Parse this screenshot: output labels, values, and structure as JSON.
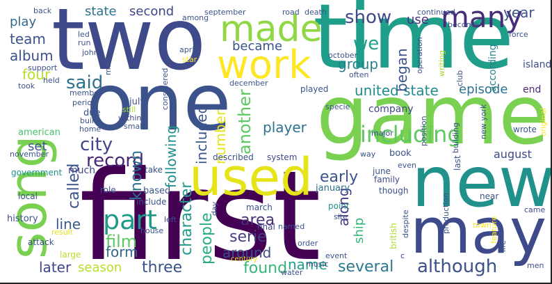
{
  "colors": {
    "background": "#ffffff",
    "dark_purple": "#440154",
    "indigo": "#3b528b",
    "blue": "#2c728e",
    "teal": "#21918c",
    "green": "#28ae80",
    "light_green": "#5ec962",
    "lime": "#addc30",
    "yellow": "#fde725"
  },
  "words": [
    {
      "text": "two",
      "color": "#3e4a89"
    },
    {
      "text": "time",
      "color": "#1f9e89"
    },
    {
      "text": "one",
      "color": "#3b528b"
    },
    {
      "text": "game",
      "color": "#7ad151"
    },
    {
      "text": "first",
      "color": "#440154"
    },
    {
      "text": "new",
      "color": "#21918c"
    },
    {
      "text": "may",
      "color": "#3e4a89"
    },
    {
      "text": "song",
      "color": "#7ad151"
    },
    {
      "text": "used",
      "color": "#e5e419"
    },
    {
      "text": "work",
      "color": "#fde725"
    },
    {
      "text": "made",
      "color": "#8fd744"
    },
    {
      "text": "many",
      "color": "#472c7a"
    },
    {
      "text": "part",
      "color": "#1f9a8a"
    },
    {
      "text": "including",
      "color": "#5ec962"
    },
    {
      "text": "although",
      "color": "#3b528b"
    },
    {
      "text": "united state",
      "color": "#238a8d"
    },
    {
      "text": "said",
      "color": "#2d708e"
    },
    {
      "text": "city",
      "color": "#3f4788"
    },
    {
      "text": "record",
      "color": "#482576"
    },
    {
      "text": "film",
      "color": "#5ec962"
    },
    {
      "text": "called",
      "color": "#3b528b"
    },
    {
      "text": "known",
      "color": "#2d708e"
    },
    {
      "text": "character",
      "color": "#1f9a8a"
    },
    {
      "text": "people",
      "color": "#29af7f"
    },
    {
      "text": "following",
      "color": "#21918c"
    },
    {
      "text": "included",
      "color": "#3a548c"
    },
    {
      "text": "number",
      "color": "#e5e419"
    },
    {
      "text": "another",
      "color": "#5ec962"
    },
    {
      "text": "player",
      "color": "#2c728e"
    },
    {
      "text": "early",
      "color": "#3b528b"
    },
    {
      "text": "area",
      "color": "#472d7b"
    },
    {
      "text": "along",
      "color": "#443983"
    },
    {
      "text": "serie",
      "color": "#433d84"
    },
    {
      "text": "around",
      "color": "#3d4d8a"
    },
    {
      "text": "ship",
      "color": "#35b779"
    },
    {
      "text": "found",
      "color": "#35b779"
    },
    {
      "text": "name",
      "color": "#1fa188"
    },
    {
      "text": "several",
      "color": "#2a788e"
    },
    {
      "text": "three",
      "color": "#3b528b"
    },
    {
      "text": "season",
      "color": "#b8de29"
    },
    {
      "text": "later",
      "color": "#3f4788"
    },
    {
      "text": "form",
      "color": "#31688e"
    },
    {
      "text": "line",
      "color": "#38588c"
    },
    {
      "text": "episode",
      "color": "#2c728e"
    },
    {
      "text": "became",
      "color": "#3b528b"
    },
    {
      "text": "group",
      "color": "#26828e"
    },
    {
      "text": "well",
      "color": "#1f9e89"
    },
    {
      "text": "began",
      "color": "#3b528b"
    },
    {
      "text": "show",
      "color": "#3e4a89"
    },
    {
      "text": "use",
      "color": "#472f7d"
    },
    {
      "text": "year",
      "color": "#3b528b"
    },
    {
      "text": "state",
      "color": "#2c728e"
    },
    {
      "text": "second",
      "color": "#3f4788"
    },
    {
      "text": "team",
      "color": "#3b528b"
    },
    {
      "text": "play",
      "color": "#31688e"
    },
    {
      "text": "album",
      "color": "#3b528b"
    },
    {
      "text": "four",
      "color": "#b8de29"
    },
    {
      "text": "august",
      "color": "#3e4a89"
    },
    {
      "text": "end",
      "color": "#482878"
    },
    {
      "text": "company",
      "color": "#3f4788"
    },
    {
      "text": "according",
      "color": "#26828e"
    },
    {
      "text": "island",
      "color": "#3d4e8a"
    },
    {
      "text": "history",
      "color": "#3b528b"
    },
    {
      "text": "american",
      "color": "#4ac16d"
    },
    {
      "text": "set",
      "color": "#3b528b"
    },
    {
      "text": "government",
      "color": "#21918c"
    },
    {
      "text": "much",
      "color": "#3f4788"
    },
    {
      "text": "local",
      "color": "#3b528b"
    },
    {
      "text": "large",
      "color": "#b8de29"
    },
    {
      "text": "attack",
      "color": "#3b528b"
    },
    {
      "text": "result",
      "color": "#e5e419"
    },
    {
      "text": "described",
      "color": "#3b528b"
    },
    {
      "text": "system",
      "color": "#3e4a89"
    },
    {
      "text": "june",
      "color": "#3b528b"
    },
    {
      "text": "january",
      "color": "#2c728e"
    },
    {
      "text": "though",
      "color": "#3b528b"
    },
    {
      "text": "family",
      "color": "#3e4a89"
    },
    {
      "text": "last",
      "color": "#3b528b"
    },
    {
      "text": "near",
      "color": "#3b528b"
    },
    {
      "text": "came",
      "color": "#3e4a89"
    },
    {
      "text": "life",
      "color": "#3b528b"
    },
    {
      "text": "men",
      "color": "#3e4a89"
    },
    {
      "text": "feature",
      "color": "#fde725"
    },
    {
      "text": "production",
      "color": "#3b528b"
    },
    {
      "text": "town",
      "color": "#fde725"
    },
    {
      "text": "despite",
      "color": "#3b528b"
    },
    {
      "text": "c",
      "color": "#3b528b"
    },
    {
      "text": "british",
      "color": "#addc30"
    },
    {
      "text": "point",
      "color": "#21918c"
    },
    {
      "text": "site",
      "color": "#3b528b"
    },
    {
      "text": "march",
      "color": "#3b528b"
    },
    {
      "text": "final",
      "color": "#3e4a89"
    },
    {
      "text": "named",
      "color": "#3b528b"
    },
    {
      "text": "order",
      "color": "#3b528b"
    },
    {
      "text": "event",
      "color": "#3b528b"
    },
    {
      "text": "music",
      "color": "#3e4a89"
    },
    {
      "text": "century",
      "color": "#e5e419"
    },
    {
      "text": "water",
      "color": "#3b528b"
    },
    {
      "text": "role",
      "color": "#3b528b"
    },
    {
      "text": "left",
      "color": "#3e4a89"
    },
    {
      "text": "day",
      "color": "#3b528b"
    },
    {
      "text": "house",
      "color": "#3b528b"
    },
    {
      "text": "based",
      "color": "#3b528b"
    },
    {
      "text": "include",
      "color": "#3b528b"
    },
    {
      "text": "take",
      "color": "#3b528b"
    },
    {
      "text": "small",
      "color": "#3b528b"
    },
    {
      "text": "home",
      "color": "#3b528b"
    },
    {
      "text": "built",
      "color": "#3b528b"
    },
    {
      "text": "within",
      "color": "#3e4a89"
    },
    {
      "text": "still",
      "color": "#addc30"
    },
    {
      "text": "period",
      "color": "#3b528b"
    },
    {
      "text": "due",
      "color": "#3b528b"
    },
    {
      "text": "member",
      "color": "#3b528b"
    },
    {
      "text": "july",
      "color": "#3b528b"
    },
    {
      "text": "took",
      "color": "#3b528b"
    },
    {
      "text": "held",
      "color": "#3b528b"
    },
    {
      "text": "support",
      "color": "#3b528b"
    },
    {
      "text": "make",
      "color": "#3b528b"
    },
    {
      "text": "john",
      "color": "#3b528b"
    },
    {
      "text": "run",
      "color": "#3b528b"
    },
    {
      "text": "led",
      "color": "#3b528b"
    },
    {
      "text": "back",
      "color": "#3b528b"
    },
    {
      "text": "considered",
      "color": "#3b528b"
    },
    {
      "text": "star",
      "color": "#fde725"
    },
    {
      "text": "april",
      "color": "#3b528b"
    },
    {
      "text": "among",
      "color": "#3b528b"
    },
    {
      "text": "september",
      "color": "#3b528b"
    },
    {
      "text": "road",
      "color": "#3b528b"
    },
    {
      "text": "death",
      "color": "#3b528b"
    },
    {
      "text": "october",
      "color": "#3b528b"
    },
    {
      "text": "often",
      "color": "#3b528b"
    },
    {
      "text": "december",
      "color": "#3b528b"
    },
    {
      "text": "continued",
      "color": "#3b528b"
    },
    {
      "text": "become",
      "color": "#3b528b"
    },
    {
      "text": "force",
      "color": "#3b528b"
    },
    {
      "text": "writing",
      "color": "#addc30"
    },
    {
      "text": "operation",
      "color": "#3b528b"
    },
    {
      "text": "club",
      "color": "#3b528b"
    },
    {
      "text": "played",
      "color": "#3b528b"
    },
    {
      "text": "specie",
      "color": "#3b528b"
    },
    {
      "text": "position",
      "color": "#3b528b"
    },
    {
      "text": "building",
      "color": "#3b528b"
    },
    {
      "text": "new york",
      "color": "#3b528b"
    },
    {
      "text": "wrote",
      "color": "#3b528b"
    },
    {
      "text": "original",
      "color": "#fde725"
    },
    {
      "text": "major",
      "color": "#3b528b"
    },
    {
      "text": "book",
      "color": "#3b528b"
    },
    {
      "text": "even",
      "color": "#3b528b"
    },
    {
      "text": "way",
      "color": "#3b528b"
    },
    {
      "text": "november",
      "color": "#3b528b"
    }
  ]
}
